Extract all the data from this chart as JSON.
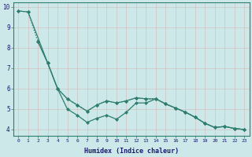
{
  "xlabel": "Humidex (Indice chaleur)",
  "bg_color": "#cce8e8",
  "grid_color": "#b8d8d8",
  "line_color": "#2e7d6e",
  "xlim": [
    -0.5,
    23.5
  ],
  "ylim": [
    3.7,
    10.2
  ],
  "yticks": [
    4,
    5,
    6,
    7,
    8,
    9,
    10
  ],
  "xticks": [
    0,
    1,
    2,
    3,
    4,
    5,
    6,
    7,
    8,
    9,
    10,
    11,
    12,
    13,
    14,
    15,
    16,
    17,
    18,
    19,
    20,
    21,
    22,
    23
  ],
  "line1_x": [
    0,
    1,
    2,
    3,
    4,
    5,
    6,
    7,
    8,
    9,
    10,
    11,
    12,
    13,
    14,
    15,
    16,
    17,
    18,
    19,
    20,
    21,
    22,
    23
  ],
  "line1_y": [
    9.8,
    9.75,
    8.3,
    7.25,
    6.0,
    5.5,
    5.2,
    4.9,
    5.2,
    5.4,
    5.3,
    5.4,
    5.55,
    5.5,
    5.5,
    5.25,
    5.05,
    4.85,
    4.6,
    4.3,
    4.1,
    4.15,
    4.05,
    4.0
  ],
  "line2_x": [
    0,
    1,
    3,
    4,
    5,
    6,
    7,
    8,
    9,
    10,
    11,
    12,
    13,
    14,
    15,
    16,
    17,
    18,
    19,
    20,
    21,
    22,
    23
  ],
  "line2_y": [
    9.8,
    9.75,
    7.25,
    6.0,
    5.5,
    5.2,
    4.9,
    5.2,
    5.4,
    5.3,
    5.4,
    5.55,
    5.5,
    5.5,
    5.25,
    5.05,
    4.85,
    4.6,
    4.3,
    4.1,
    4.15,
    4.05,
    4.0
  ],
  "line3_x": [
    2,
    3,
    4,
    5,
    6,
    7,
    8,
    9,
    10,
    11,
    12,
    13,
    14,
    15,
    16,
    17,
    18,
    19,
    20,
    21,
    22,
    23
  ],
  "line3_y": [
    8.3,
    7.25,
    6.0,
    5.0,
    4.7,
    4.35,
    4.55,
    4.7,
    4.5,
    4.85,
    5.3,
    5.3,
    5.5,
    5.25,
    5.05,
    4.85,
    4.6,
    4.3,
    4.1,
    4.15,
    4.05,
    4.0
  ]
}
